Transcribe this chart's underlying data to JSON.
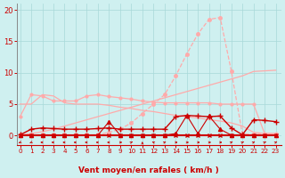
{
  "background_color": "#cff0f0",
  "grid_color": "#a8d8d8",
  "xlabel": "Vent moyen/en rafales ( km/h )",
  "xlabel_color": "#cc0000",
  "tick_color": "#cc0000",
  "x_ticks": [
    0,
    1,
    2,
    3,
    4,
    5,
    6,
    7,
    8,
    9,
    10,
    11,
    12,
    13,
    14,
    15,
    16,
    17,
    18,
    19,
    20,
    21,
    22,
    23
  ],
  "y_ticks": [
    0,
    5,
    10,
    15,
    20
  ],
  "ylim": [
    -1.5,
    21
  ],
  "xlim": [
    -0.3,
    23.5
  ],
  "series": [
    {
      "x": [
        0,
        1,
        2,
        3,
        4,
        5,
        6,
        7,
        8,
        9,
        10,
        11,
        12,
        13,
        14,
        15,
        16,
        17,
        18,
        19,
        20,
        21,
        22,
        23
      ],
      "y": [
        0.1,
        0.1,
        0.1,
        0.1,
        0.1,
        0.1,
        0.1,
        0.1,
        0.5,
        1.0,
        2.0,
        3.5,
        5.0,
        6.5,
        9.5,
        13.0,
        16.2,
        18.5,
        18.8,
        10.3,
        0.2,
        0.2,
        0.2,
        0.2
      ],
      "color": "#ffaaaa",
      "linewidth": 0.9,
      "linestyle": "--",
      "marker": "o",
      "markersize": 2.5,
      "zorder": 3
    },
    {
      "x": [
        0,
        1,
        2,
        3,
        4,
        5,
        6,
        7,
        8,
        9,
        10,
        11,
        12,
        13,
        14,
        15,
        16,
        17,
        18,
        19,
        20,
        21,
        22,
        23
      ],
      "y": [
        0.1,
        0.3,
        0.6,
        1.0,
        1.5,
        2.0,
        2.5,
        3.0,
        3.5,
        4.0,
        4.5,
        5.0,
        5.5,
        6.0,
        6.5,
        7.0,
        7.5,
        8.0,
        8.5,
        9.0,
        9.5,
        10.2,
        10.3,
        10.4
      ],
      "color": "#ffaaaa",
      "linewidth": 0.9,
      "linestyle": "-",
      "marker": "None",
      "markersize": 0,
      "zorder": 2
    },
    {
      "x": [
        0,
        1,
        2,
        3,
        4,
        5,
        6,
        7,
        8,
        9,
        10,
        11,
        12,
        13,
        14,
        15,
        16,
        17,
        18,
        19,
        20,
        21,
        22,
        23
      ],
      "y": [
        5.0,
        5.0,
        6.5,
        6.3,
        5.2,
        5.0,
        5.0,
        5.0,
        4.8,
        4.5,
        4.3,
        4.0,
        3.8,
        3.5,
        3.2,
        3.0,
        2.8,
        2.5,
        2.3,
        2.0,
        1.5,
        0.5,
        0.3,
        0.3
      ],
      "color": "#ffaaaa",
      "linewidth": 0.9,
      "linestyle": "-",
      "marker": "None",
      "markersize": 0,
      "zorder": 2
    },
    {
      "x": [
        0,
        1,
        2,
        3,
        4,
        5,
        6,
        7,
        8,
        9,
        10,
        11,
        12,
        13,
        14,
        15,
        16,
        17,
        18,
        19,
        20,
        21,
        22,
        23
      ],
      "y": [
        3.0,
        6.5,
        6.3,
        5.5,
        5.5,
        5.5,
        6.3,
        6.5,
        6.2,
        6.0,
        5.8,
        5.5,
        5.3,
        5.2,
        5.2,
        5.2,
        5.2,
        5.2,
        5.0,
        5.0,
        5.0,
        5.0,
        0.3,
        0.3
      ],
      "color": "#ffaaaa",
      "linewidth": 0.9,
      "linestyle": "-",
      "marker": "o",
      "markersize": 2.0,
      "zorder": 2
    },
    {
      "x": [
        0,
        1,
        2,
        3,
        4,
        5,
        6,
        7,
        8,
        9,
        10,
        11,
        12,
        13,
        14,
        15,
        16,
        17,
        18,
        19,
        20,
        21,
        22,
        23
      ],
      "y": [
        0.0,
        0.0,
        0.0,
        0.0,
        0.0,
        0.0,
        0.0,
        0.0,
        0.0,
        0.0,
        0.0,
        0.0,
        0.0,
        0.0,
        0.0,
        0.0,
        0.0,
        0.0,
        0.0,
        0.0,
        0.0,
        0.0,
        0.0,
        0.0
      ],
      "color": "#cc0000",
      "linewidth": 1.5,
      "linestyle": "-",
      "marker": "None",
      "markersize": 0,
      "zorder": 6
    },
    {
      "x": [
        0,
        1,
        2,
        3,
        4,
        5,
        6,
        7,
        8,
        9,
        10,
        11,
        12,
        13,
        14,
        15,
        16,
        17,
        18,
        19,
        20,
        21,
        22,
        23
      ],
      "y": [
        0.1,
        1.0,
        1.2,
        1.1,
        1.0,
        1.0,
        1.0,
        1.1,
        1.2,
        1.0,
        1.0,
        1.0,
        1.0,
        1.0,
        3.0,
        3.2,
        3.1,
        3.0,
        3.1,
        1.2,
        0.1,
        2.5,
        2.4,
        2.2
      ],
      "color": "#cc0000",
      "linewidth": 1.0,
      "linestyle": "-",
      "marker": "+",
      "markersize": 4,
      "zorder": 7
    },
    {
      "x": [
        0,
        1,
        2,
        3,
        4,
        5,
        6,
        7,
        8,
        9,
        10,
        11,
        12,
        13,
        14,
        15,
        16,
        17,
        18,
        19,
        20,
        21,
        22,
        23
      ],
      "y": [
        0.05,
        0.05,
        0.05,
        0.05,
        0.05,
        0.05,
        0.05,
        0.05,
        2.2,
        0.05,
        0.05,
        0.05,
        0.05,
        0.05,
        0.3,
        3.2,
        0.3,
        3.1,
        1.0,
        0.05,
        0.05,
        0.05,
        0.05,
        0.05
      ],
      "color": "#cc0000",
      "linewidth": 0.8,
      "linestyle": "-",
      "marker": "^",
      "markersize": 3,
      "zorder": 8
    },
    {
      "x": [
        0,
        1,
        2,
        3,
        4,
        5,
        6,
        7,
        8,
        9,
        10,
        11,
        12,
        13,
        14,
        15,
        16,
        17,
        18,
        19,
        20,
        21,
        22,
        23
      ],
      "y": [
        0.02,
        0.02,
        0.02,
        0.02,
        0.02,
        0.02,
        0.02,
        0.02,
        0.02,
        0.02,
        0.02,
        0.02,
        0.02,
        0.02,
        0.05,
        0.05,
        0.05,
        0.05,
        0.02,
        0.0,
        0.0,
        0.0,
        0.02,
        0.02
      ],
      "color": "#cc0000",
      "linewidth": 0.7,
      "linestyle": "-",
      "marker": "x",
      "markersize": 2.5,
      "zorder": 9
    }
  ],
  "arrow_data": {
    "y_pos": -1.1,
    "angles_deg": [
      225,
      225,
      270,
      270,
      270,
      270,
      270,
      270,
      270,
      90,
      45,
      0,
      315,
      45,
      90,
      90,
      90,
      90,
      90,
      45,
      45,
      45,
      45,
      45
    ]
  }
}
